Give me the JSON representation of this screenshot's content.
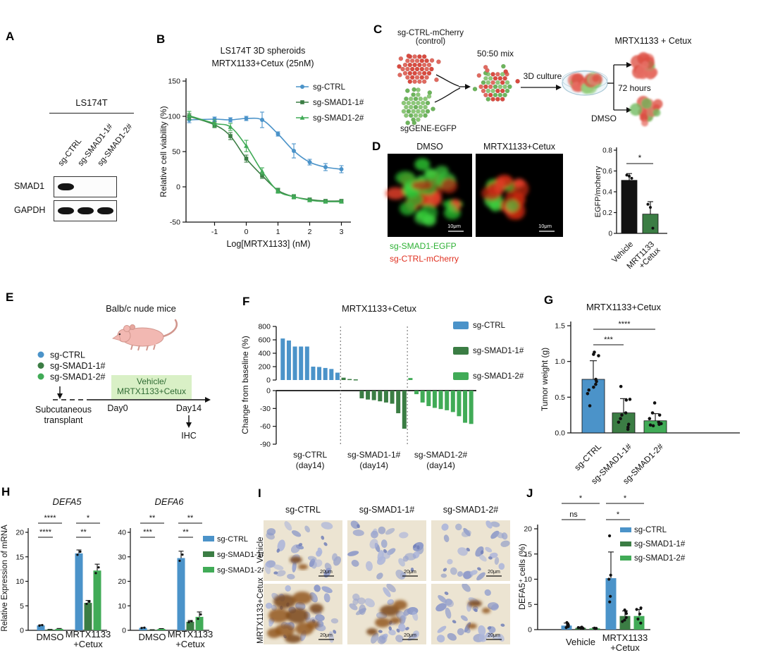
{
  "colors": {
    "blue": "#4b93c9",
    "dark_green": "#3b7d44",
    "light_green": "#41ab57",
    "bar_black": "#121212",
    "egfp_green": "#2eb135",
    "mcherry_red": "#e03020",
    "box_green_bg": "#d9f0c6",
    "box_green_text": "#2f6b33",
    "ihc_bg": "#ece4d2",
    "ihc_nucleus": "#a3aed3",
    "ihc_brown": "#8f5720"
  },
  "panel_a": {
    "label": "A",
    "cell_line": "LS174T",
    "lanes": [
      "sg-CTRL",
      "sg-SMAD1-1#",
      "sg-SMAD1-2#"
    ],
    "rows": [
      {
        "protein": "SMAD1",
        "bands": [
          1,
          0,
          0
        ]
      },
      {
        "protein": "GAPDH",
        "bands": [
          1,
          1,
          1
        ]
      }
    ]
  },
  "panel_b": {
    "label": "B"
  },
  "panel_c": {
    "label": "C",
    "control_cells_label": [
      "sg-CTRL-mCherry",
      "(control)"
    ],
    "gene_cells_label": "sgGENE-EGFP",
    "mix_label": "50:50 mix",
    "culture_label": "3D culture",
    "treated_label": "MRTX1133 + Cetux",
    "duration_label": "72 hours",
    "vehicle_label": "DMSO"
  },
  "panel_d": {
    "label": "D",
    "image_titles": [
      "DMSO",
      "MRTX1133+Cetux"
    ],
    "scale_bar": "10μm",
    "image_legend": [
      {
        "text": "sg-SMAD1-EGFP",
        "color_key": "egfp_green"
      },
      {
        "text": "sg-CTRL-mCherry",
        "color_key": "mcherry_red"
      }
    ]
  },
  "panel_e": {
    "label": "E",
    "title": "Balb/c nude mice",
    "groups": [
      {
        "label": "sg-CTRL",
        "color_key": "blue"
      },
      {
        "label": "sg-SMAD1-1#",
        "color_key": "dark_green"
      },
      {
        "label": "sg-SMAD1-2#",
        "color_key": "light_green"
      }
    ],
    "treatment_box": [
      "Vehicle/",
      "MRTX1133+Cetux"
    ],
    "day_start": "Day0",
    "day_end": "Day14",
    "transplant_label": [
      "Subcutaneous",
      "transplant"
    ],
    "endpoint_label": "IHC"
  },
  "panel_f": {
    "label": "F"
  },
  "panel_g": {
    "label": "G"
  },
  "panel_h": {
    "label": "H"
  },
  "panel_i": {
    "label": "I",
    "col_headers": [
      "sg-CTRL",
      "sg-SMAD1-1#",
      "sg-SMAD1-2#"
    ],
    "row_labels": [
      "Vehicle",
      "MRTX1133+Cetux"
    ],
    "scale_bar": "20μm"
  },
  "panel_j": {
    "label": "J"
  },
  "chart_data": [
    {
      "panel": "B",
      "type": "line",
      "title": [
        "LS174T 3D spheroids",
        "MRTX1133+Cetux (25nM)"
      ],
      "xlabel": "Log[MRTX1133] (nM)",
      "ylabel": "Relative cell viability (%)",
      "xlim": [
        -1.9,
        3.3
      ],
      "ylim": [
        -50,
        150
      ],
      "xticks": [
        -1,
        0,
        1,
        2,
        3
      ],
      "yticks": [
        -50,
        0,
        50,
        100,
        150
      ],
      "legend_position": "top-right",
      "series": [
        {
          "name": "sg-CTRL",
          "color_key": "blue",
          "marker": "circle",
          "x": [
            -1.8,
            -1,
            -0.5,
            0,
            0.5,
            1,
            1.5,
            2,
            2.5,
            3
          ],
          "y": [
            95,
            96,
            95,
            97,
            95,
            75,
            51,
            35,
            28,
            25
          ],
          "err": [
            4,
            3,
            3,
            3,
            11,
            3,
            10,
            4,
            5,
            5
          ]
        },
        {
          "name": "sg-SMAD1-1#",
          "color_key": "dark_green",
          "marker": "square",
          "x": [
            -1.8,
            -1,
            -0.5,
            0,
            0.5,
            1,
            1.5,
            2,
            2.5,
            3
          ],
          "y": [
            100,
            88,
            72,
            40,
            16,
            -5,
            -14,
            -18,
            -20,
            -20
          ],
          "err": [
            4,
            4,
            5,
            5,
            4,
            3,
            3,
            2,
            2,
            2
          ]
        },
        {
          "name": "sg-SMAD1-2#",
          "color_key": "light_green",
          "marker": "triangle",
          "x": [
            -1.8,
            -1,
            -0.5,
            0,
            0.5,
            1,
            1.5,
            2,
            2.5,
            3
          ],
          "y": [
            101,
            90,
            85,
            58,
            22,
            -6,
            -14,
            -19,
            -21,
            -21
          ],
          "err": [
            6,
            5,
            5,
            8,
            5,
            3,
            3,
            2,
            2,
            2
          ]
        }
      ]
    },
    {
      "panel": "D",
      "type": "bar",
      "ylabel": "EGFP/mcherry",
      "ylim": [
        0,
        0.8
      ],
      "yticks": [
        0,
        0.2,
        0.4,
        0.6,
        0.8
      ],
      "categories": [
        [
          "Vehicle"
        ],
        [
          "MRT1133",
          "+Cetux"
        ]
      ],
      "values": [
        0.51,
        0.185
      ],
      "errors": [
        0.065,
        0.12
      ],
      "bar_color_keys": [
        "bar_black",
        "dark_green"
      ],
      "points": [
        [
          0.56,
          0.55,
          0.53
        ],
        [
          0.28,
          0.25,
          0.05
        ]
      ],
      "sig": [
        {
          "from": 0,
          "to": 1,
          "label": "*"
        }
      ]
    },
    {
      "panel": "F",
      "type": "waterfall",
      "title": "MRTX1133+Cetux",
      "ylabel": "Change from baseline (%)",
      "top_axis": {
        "ylim": [
          0,
          800
        ],
        "yticks": [
          0,
          200,
          400,
          600,
          800
        ]
      },
      "bottom_axis": {
        "ylim": [
          -90,
          0
        ],
        "yticks": [
          0,
          -30,
          -60,
          -90
        ]
      },
      "groups": [
        {
          "name": "sg-CTRL",
          "x_label": [
            "sg-CTRL",
            "(day14)"
          ],
          "color_key": "blue",
          "values": [
            620,
            590,
            500,
            500,
            500,
            200,
            195,
            180,
            165,
            110
          ]
        },
        {
          "name": "sg-SMAD1-1#",
          "x_label": [
            "sg-SMAD1-1#",
            "(day14)"
          ],
          "color_key": "dark_green",
          "values": [
            35,
            15,
            10,
            -13,
            -15,
            -16,
            -18,
            -20,
            -22,
            -38,
            -64
          ]
        },
        {
          "name": "sg-SMAD1-2#",
          "x_label": [
            "sg-SMAD1-2#",
            "(day14)"
          ],
          "color_key": "light_green",
          "values": [
            30,
            -6,
            -20,
            -26,
            -29,
            -31,
            -33,
            -36,
            -43,
            -54,
            -56
          ]
        }
      ],
      "legend": [
        {
          "label": "sg-CTRL",
          "color_key": "blue"
        },
        {
          "label": "sg-SMAD1-1#",
          "color_key": "dark_green"
        },
        {
          "label": "sg-SMAD1-2#",
          "color_key": "light_green"
        }
      ]
    },
    {
      "panel": "G",
      "type": "bar",
      "title": "MRTX1133+Cetux",
      "ylabel": "Tumor weight (g)",
      "ylim": [
        0,
        1.5
      ],
      "yticks": [
        0,
        0.5,
        1,
        1.5
      ],
      "categories": [
        "sg-CTRL",
        "sg-SMAD1-1#",
        "sg-SMAD1-2#"
      ],
      "values": [
        0.75,
        0.28,
        0.17
      ],
      "errors": [
        0.26,
        0.2,
        0.1
      ],
      "bar_color_keys": [
        "blue",
        "dark_green",
        "light_green"
      ],
      "points": [
        [
          1.13,
          1.1,
          1.08,
          0.75,
          0.72,
          0.68,
          0.64,
          0.6,
          0.55,
          0.38
        ],
        [
          0.65,
          0.47,
          0.46,
          0.28,
          0.25,
          0.2,
          0.15,
          0.12,
          0.08,
          0.05
        ],
        [
          0.42,
          0.28,
          0.25,
          0.2,
          0.15,
          0.13,
          0.12,
          0.11,
          0.1
        ]
      ],
      "sig": [
        {
          "from": 0,
          "to": 1,
          "label": "***"
        },
        {
          "from": 0,
          "to": 2,
          "label": "****"
        }
      ]
    },
    {
      "panel": "H",
      "type": "grouped-bar",
      "ylabel": "Relative Expression of mRNA",
      "legend": [
        {
          "label": "sg-CTRL",
          "color_key": "blue"
        },
        {
          "label": "sg-SMAD1-1#",
          "color_key": "dark_green"
        },
        {
          "label": "sg-SMAD1-2#",
          "color_key": "light_green"
        }
      ],
      "charts": [
        {
          "title": "DEFA5",
          "ylim": [
            0,
            20
          ],
          "yticks": [
            0,
            5,
            10,
            15,
            20
          ],
          "group_labels": [
            [
              "DMSO"
            ],
            [
              "MRTX1133",
              "+Cetux"
            ]
          ],
          "values": [
            [
              1.0,
              0.15,
              0.3
            ],
            [
              15.7,
              5.6,
              12.2
            ]
          ],
          "errors": [
            [
              0.12,
              0.05,
              0.08
            ],
            [
              0.7,
              0.5,
              1.3
            ]
          ],
          "sig": [
            {
              "group": 0,
              "upper": "****",
              "lower": "****"
            },
            {
              "group": 1,
              "upper": "*",
              "lower": "**"
            }
          ]
        },
        {
          "title": "DEFA6",
          "ylim": [
            0,
            40
          ],
          "yticks": [
            0,
            10,
            20,
            30,
            40
          ],
          "group_labels": [
            [
              "DMSO"
            ],
            [
              "MRTX1133",
              "+Cetux"
            ]
          ],
          "values": [
            [
              1.0,
              0.2,
              0.6
            ],
            [
              29.5,
              3.5,
              5.5
            ]
          ],
          "errors": [
            [
              0.15,
              0.06,
              0.12
            ],
            [
              2.8,
              0.5,
              2.0
            ]
          ],
          "sig": [
            {
              "group": 0,
              "upper": "**",
              "lower": "***"
            },
            {
              "group": 1,
              "upper": "**",
              "lower": "**"
            }
          ]
        }
      ]
    },
    {
      "panel": "J",
      "type": "grouped-bar",
      "ylabel": "DEFA5⁺ cells (%)",
      "ylim": [
        0,
        20
      ],
      "yticks": [
        0,
        5,
        10,
        15,
        20
      ],
      "legend": [
        {
          "label": "sg-CTRL",
          "color_key": "blue"
        },
        {
          "label": "sg-SMAD1-1#",
          "color_key": "dark_green"
        },
        {
          "label": "sg-SMAD1-2#",
          "color_key": "light_green"
        }
      ],
      "group_labels": [
        [
          "Vehicle"
        ],
        [
          "MRTX1133",
          "+Cetux"
        ]
      ],
      "values": [
        [
          0.8,
          0.35,
          0.25
        ],
        [
          10.2,
          2.7,
          2.7
        ]
      ],
      "errors": [
        [
          0.5,
          0.15,
          0.1
        ],
        [
          5.2,
          1.0,
          1.3
        ]
      ],
      "points": [
        [
          [
            1.4,
            1.1,
            0.9,
            0.7,
            0.6,
            0.4
          ],
          [
            0.5,
            0.4,
            0.35,
            0.3,
            0.25
          ],
          [
            0.3,
            0.25,
            0.2,
            0.2
          ]
        ],
        [
          [
            18.6,
            10.8,
            10.0,
            6.6,
            5.5
          ],
          [
            3.9,
            3.6,
            3.2,
            2.4,
            1.9,
            1.6
          ],
          [
            4.3,
            4.0,
            3.1,
            2.1,
            1.3
          ]
        ]
      ],
      "sig": [
        {
          "group": 0,
          "upper": "*",
          "lower": "ns"
        },
        {
          "group": 1,
          "upper": "*",
          "lower": "*"
        }
      ]
    }
  ]
}
